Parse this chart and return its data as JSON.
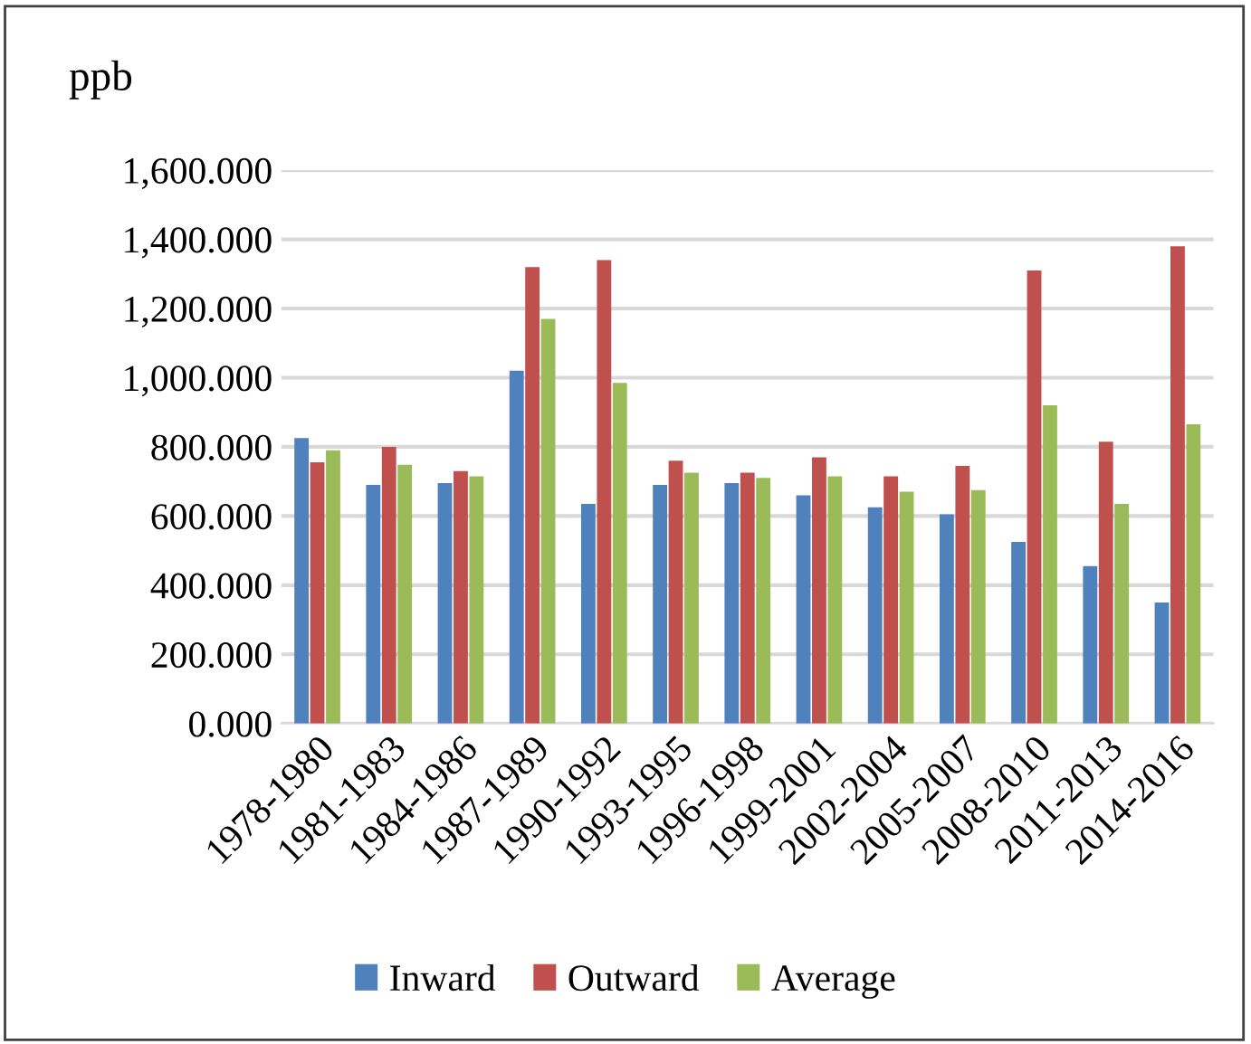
{
  "chart_data": {
    "type": "bar",
    "ylabel": "ppb",
    "categories": [
      "1978-1980",
      "1981-1983",
      "1984-1986",
      "1987-1989",
      "1990-1992",
      "1993-1995",
      "1996-1998",
      "1999-2001",
      "2002-2004",
      "2005-2007",
      "2008-2010",
      "2011-2013",
      "2014-2016"
    ],
    "series": [
      {
        "name": "Inward",
        "color": "#4f81bd",
        "values": [
          825,
          690,
          695,
          1020,
          635,
          690,
          695,
          660,
          625,
          605,
          525,
          455,
          350
        ]
      },
      {
        "name": "Outward",
        "color": "#c0504d",
        "values": [
          755,
          800,
          730,
          1320,
          1340,
          760,
          725,
          770,
          715,
          745,
          1310,
          815,
          1380
        ]
      },
      {
        "name": "Average",
        "color": "#9bbb59",
        "values": [
          790,
          748,
          715,
          1170,
          985,
          725,
          710,
          715,
          670,
          675,
          920,
          635,
          865
        ]
      }
    ],
    "ylim": [
      0,
      1600
    ],
    "yticks": [
      {
        "value": 0,
        "label": "0.000"
      },
      {
        "value": 200,
        "label": "200.000"
      },
      {
        "value": 400,
        "label": "400.000"
      },
      {
        "value": 600,
        "label": "600.000"
      },
      {
        "value": 800,
        "label": "800.000"
      },
      {
        "value": 1000,
        "label": "1,000.000"
      },
      {
        "value": 1200,
        "label": "1,200.000"
      },
      {
        "value": 1400,
        "label": "1,400.000"
      },
      {
        "value": 1600,
        "label": "1,600.000"
      }
    ],
    "grid": "y",
    "legend": "bottom"
  }
}
